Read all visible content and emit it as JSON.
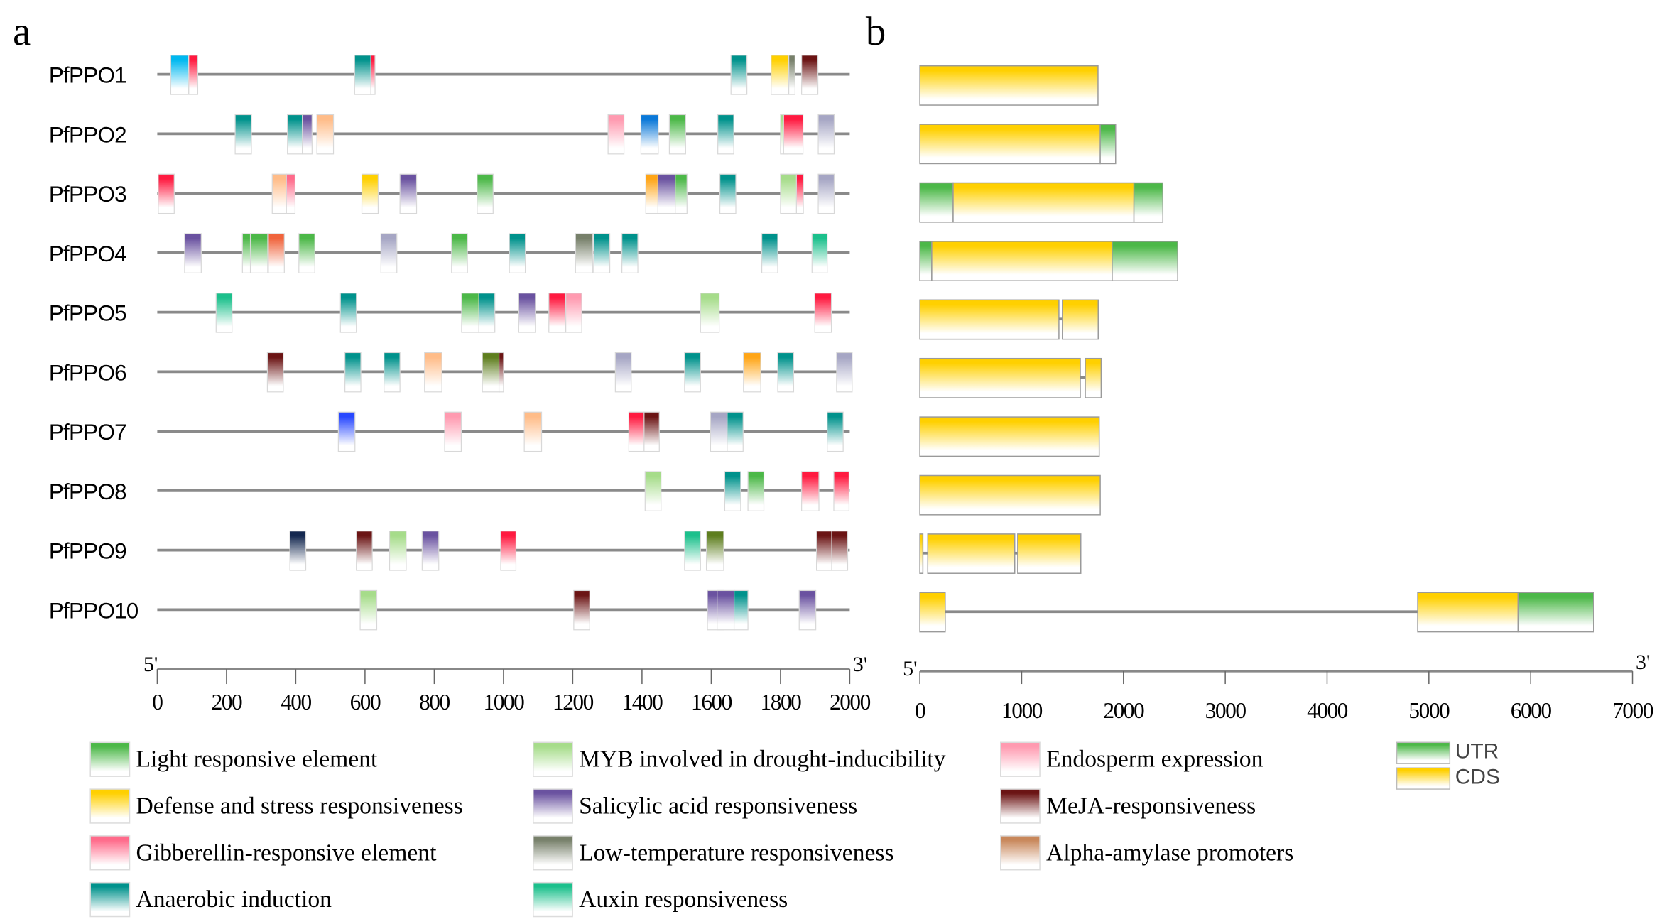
{
  "panel_labels": {
    "a": "a",
    "b": "b"
  },
  "palette": {
    "light": "#4cb848",
    "myb": "#a6dc8a",
    "endo": "#ff9ab0",
    "defense": "#ffd000",
    "sa": "#6a52a0",
    "meja": "#6b1414",
    "ga": "#ff6a8a",
    "lowtemp": "#77806a",
    "amylase": "#c8875a",
    "anaer": "#00928c",
    "auxin": "#1cc08c",
    "cyan": "#00b8f0",
    "red": "#ff1a40",
    "blue": "#0a78d8",
    "peach": "#ffbc88",
    "lavender": "#a6a6c4",
    "orange": "#ffa516",
    "orangered": "#f0643c",
    "olive": "#5e7e1e",
    "royalblue": "#2848ff",
    "navy": "#142850",
    "utr": "#4cb848",
    "cds": "#ffd000"
  },
  "chart_data": [
    {
      "type": "diagram",
      "title": "a",
      "xlabel_left": "5'",
      "xlabel_right": "3'",
      "xlim": [
        0,
        2000
      ],
      "ticks": [
        "0",
        "200",
        "400",
        "600",
        "800",
        "1000",
        "1200",
        "1400",
        "1600",
        "1800",
        "2000"
      ],
      "genes": [
        {
          "name": "PfPPO1",
          "elements": [
            {
              "pos": 39,
              "len": 50,
              "c": "cyan"
            },
            {
              "pos": 91,
              "len": 26,
              "c": "red"
            },
            {
              "pos": 570,
              "len": 47,
              "c": "anaer"
            },
            {
              "pos": 617,
              "len": 12,
              "c": "red"
            },
            {
              "pos": 1657,
              "len": 46,
              "c": "anaer"
            },
            {
              "pos": 1773,
              "len": 50,
              "c": "defense"
            },
            {
              "pos": 1824,
              "len": 18,
              "c": "lowtemp"
            },
            {
              "pos": 1861,
              "len": 47,
              "c": "meja"
            }
          ]
        },
        {
          "name": "PfPPO2",
          "elements": [
            {
              "pos": 225,
              "len": 47,
              "c": "anaer"
            },
            {
              "pos": 376,
              "len": 45,
              "c": "anaer"
            },
            {
              "pos": 419,
              "len": 28,
              "c": "sa"
            },
            {
              "pos": 461,
              "len": 48,
              "c": "peach"
            },
            {
              "pos": 1302,
              "len": 46,
              "c": "endo"
            },
            {
              "pos": 1397,
              "len": 50,
              "c": "blue"
            },
            {
              "pos": 1479,
              "len": 47,
              "c": "light"
            },
            {
              "pos": 1619,
              "len": 46,
              "c": "anaer"
            },
            {
              "pos": 1800,
              "len": 20,
              "c": "myb"
            },
            {
              "pos": 1809,
              "len": 56,
              "c": "red"
            },
            {
              "pos": 1909,
              "len": 46,
              "c": "lavender"
            }
          ]
        },
        {
          "name": "PfPPO3",
          "elements": [
            {
              "pos": 3,
              "len": 46,
              "c": "red"
            },
            {
              "pos": 332,
              "len": 42,
              "c": "peach"
            },
            {
              "pos": 373,
              "len": 25,
              "c": "ga"
            },
            {
              "pos": 591,
              "len": 47,
              "c": "defense"
            },
            {
              "pos": 701,
              "len": 48,
              "c": "sa"
            },
            {
              "pos": 924,
              "len": 46,
              "c": "light"
            },
            {
              "pos": 1411,
              "len": 36,
              "c": "orange"
            },
            {
              "pos": 1446,
              "len": 50,
              "c": "sa"
            },
            {
              "pos": 1496,
              "len": 34,
              "c": "light"
            },
            {
              "pos": 1625,
              "len": 46,
              "c": "anaer"
            },
            {
              "pos": 1800,
              "len": 48,
              "c": "myb"
            },
            {
              "pos": 1846,
              "len": 20,
              "c": "red"
            },
            {
              "pos": 1909,
              "len": 46,
              "c": "lavender"
            }
          ]
        },
        {
          "name": "PfPPO4",
          "elements": [
            {
              "pos": 79,
              "len": 48,
              "c": "sa"
            },
            {
              "pos": 246,
              "len": 48,
              "c": "light"
            },
            {
              "pos": 269,
              "len": 50,
              "c": "light"
            },
            {
              "pos": 321,
              "len": 46,
              "c": "orangered"
            },
            {
              "pos": 409,
              "len": 46,
              "c": "light"
            },
            {
              "pos": 646,
              "len": 46,
              "c": "lavender"
            },
            {
              "pos": 850,
              "len": 46,
              "c": "light"
            },
            {
              "pos": 1017,
              "len": 46,
              "c": "anaer"
            },
            {
              "pos": 1208,
              "len": 50,
              "c": "lowtemp"
            },
            {
              "pos": 1261,
              "len": 46,
              "c": "anaer"
            },
            {
              "pos": 1342,
              "len": 46,
              "c": "anaer"
            },
            {
              "pos": 1746,
              "len": 46,
              "c": "anaer"
            },
            {
              "pos": 1891,
              "len": 44,
              "c": "auxin"
            }
          ]
        },
        {
          "name": "PfPPO5",
          "elements": [
            {
              "pos": 170,
              "len": 46,
              "c": "auxin"
            },
            {
              "pos": 529,
              "len": 46,
              "c": "anaer"
            },
            {
              "pos": 879,
              "len": 50,
              "c": "light"
            },
            {
              "pos": 929,
              "len": 46,
              "c": "anaer"
            },
            {
              "pos": 1044,
              "len": 48,
              "c": "sa"
            },
            {
              "pos": 1131,
              "len": 48,
              "c": "red"
            },
            {
              "pos": 1180,
              "len": 46,
              "c": "endo"
            },
            {
              "pos": 1569,
              "len": 54,
              "c": "myb"
            },
            {
              "pos": 1899,
              "len": 48,
              "c": "red"
            }
          ]
        },
        {
          "name": "PfPPO6",
          "elements": [
            {
              "pos": 318,
              "len": 46,
              "c": "meja"
            },
            {
              "pos": 542,
              "len": 46,
              "c": "anaer"
            },
            {
              "pos": 655,
              "len": 46,
              "c": "anaer"
            },
            {
              "pos": 772,
              "len": 50,
              "c": "peach"
            },
            {
              "pos": 939,
              "len": 50,
              "c": "olive"
            },
            {
              "pos": 987,
              "len": 13,
              "c": "meja"
            },
            {
              "pos": 1323,
              "len": 46,
              "c": "lavender"
            },
            {
              "pos": 1523,
              "len": 46,
              "c": "anaer"
            },
            {
              "pos": 1693,
              "len": 50,
              "c": "orange"
            },
            {
              "pos": 1792,
              "len": 46,
              "c": "anaer"
            },
            {
              "pos": 1962,
              "len": 45,
              "c": "lavender"
            }
          ]
        },
        {
          "name": "PfPPO7",
          "elements": [
            {
              "pos": 523,
              "len": 48,
              "c": "royalblue"
            },
            {
              "pos": 830,
              "len": 48,
              "c": "endo"
            },
            {
              "pos": 1060,
              "len": 50,
              "c": "peach"
            },
            {
              "pos": 1362,
              "len": 46,
              "c": "red"
            },
            {
              "pos": 1406,
              "len": 44,
              "c": "meja"
            },
            {
              "pos": 1598,
              "len": 48,
              "c": "lavender"
            },
            {
              "pos": 1646,
              "len": 46,
              "c": "anaer"
            },
            {
              "pos": 1935,
              "len": 46,
              "c": "anaer"
            }
          ]
        },
        {
          "name": "PfPPO8",
          "elements": [
            {
              "pos": 1409,
              "len": 46,
              "c": "myb"
            },
            {
              "pos": 1639,
              "len": 46,
              "c": "anaer"
            },
            {
              "pos": 1706,
              "len": 46,
              "c": "light"
            },
            {
              "pos": 1861,
              "len": 50,
              "c": "red"
            },
            {
              "pos": 1954,
              "len": 44,
              "c": "red"
            }
          ]
        },
        {
          "name": "PfPPO9",
          "elements": [
            {
              "pos": 383,
              "len": 46,
              "c": "navy"
            },
            {
              "pos": 575,
              "len": 46,
              "c": "meja"
            },
            {
              "pos": 671,
              "len": 48,
              "c": "myb"
            },
            {
              "pos": 765,
              "len": 48,
              "c": "sa"
            },
            {
              "pos": 992,
              "len": 44,
              "c": "red"
            },
            {
              "pos": 1523,
              "len": 46,
              "c": "auxin"
            },
            {
              "pos": 1586,
              "len": 50,
              "c": "olive"
            },
            {
              "pos": 1904,
              "len": 44,
              "c": "meja"
            },
            {
              "pos": 1948,
              "len": 46,
              "c": "meja"
            }
          ]
        },
        {
          "name": "PfPPO10",
          "elements": [
            {
              "pos": 586,
              "len": 48,
              "c": "myb"
            },
            {
              "pos": 1203,
              "len": 46,
              "c": "meja"
            },
            {
              "pos": 1589,
              "len": 46,
              "c": "sa"
            },
            {
              "pos": 1617,
              "len": 50,
              "c": "sa"
            },
            {
              "pos": 1666,
              "len": 40,
              "c": "anaer"
            },
            {
              "pos": 1854,
              "len": 48,
              "c": "sa"
            }
          ]
        }
      ]
    },
    {
      "type": "diagram",
      "title": "b",
      "xlabel_left": "5'",
      "xlabel_right": "3'",
      "xlim": [
        0,
        7000
      ],
      "ticks": [
        "0",
        "1000",
        "2000",
        "3000",
        "4000",
        "5000",
        "6000",
        "7000"
      ],
      "genes": [
        {
          "name": "PfPPO1",
          "features": [
            {
              "type": "cds",
              "start": 0,
              "end": 1750
            }
          ]
        },
        {
          "name": "PfPPO2",
          "features": [
            {
              "type": "cds",
              "start": 0,
              "end": 1772
            },
            {
              "type": "utr",
              "start": 1772,
              "end": 1923
            }
          ]
        },
        {
          "name": "PfPPO3",
          "features": [
            {
              "type": "utr",
              "start": 0,
              "end": 327
            },
            {
              "type": "cds",
              "start": 327,
              "end": 2103
            },
            {
              "type": "utr",
              "start": 2103,
              "end": 2387
            }
          ]
        },
        {
          "name": "PfPPO4",
          "features": [
            {
              "type": "utr",
              "start": 0,
              "end": 117
            },
            {
              "type": "cds",
              "start": 117,
              "end": 1889
            },
            {
              "type": "utr",
              "start": 1889,
              "end": 2533
            }
          ]
        },
        {
          "name": "PfPPO5",
          "features": [
            {
              "type": "cds",
              "start": 0,
              "end": 1366
            },
            {
              "type": "intron",
              "start": 1366,
              "end": 1400
            },
            {
              "type": "cds",
              "start": 1400,
              "end": 1752
            }
          ]
        },
        {
          "name": "PfPPO6",
          "features": [
            {
              "type": "cds",
              "start": 0,
              "end": 1576
            },
            {
              "type": "intron",
              "start": 1576,
              "end": 1625
            },
            {
              "type": "cds",
              "start": 1625,
              "end": 1781
            }
          ]
        },
        {
          "name": "PfPPO7",
          "features": [
            {
              "type": "cds",
              "start": 0,
              "end": 1762
            }
          ]
        },
        {
          "name": "PfPPO8",
          "features": [
            {
              "type": "cds",
              "start": 0,
              "end": 1772
            }
          ]
        },
        {
          "name": "PfPPO9",
          "features": [
            {
              "type": "cds",
              "start": 0,
              "end": 30
            },
            {
              "type": "intron",
              "start": 30,
              "end": 78
            },
            {
              "type": "cds",
              "start": 78,
              "end": 932
            },
            {
              "type": "intron",
              "start": 932,
              "end": 961
            },
            {
              "type": "cds",
              "start": 961,
              "end": 1581
            }
          ]
        },
        {
          "name": "PfPPO10",
          "features": [
            {
              "type": "cds",
              "start": 0,
              "end": 249
            },
            {
              "type": "intron",
              "start": 249,
              "end": 4890
            },
            {
              "type": "cds",
              "start": 4890,
              "end": 5876
            },
            {
              "type": "utr",
              "start": 5876,
              "end": 6618
            }
          ]
        }
      ]
    }
  ],
  "legend": [
    {
      "label": "Light responsive element",
      "c": "light"
    },
    {
      "label": "Defense and stress responsiveness",
      "c": "defense"
    },
    {
      "label": "Gibberellin-responsive element",
      "c": "ga"
    },
    {
      "label": "Anaerobic induction",
      "c": "anaer"
    },
    {
      "label": "MYB involved in drought-inducibility",
      "c": "myb"
    },
    {
      "label": "Salicylic acid responsiveness",
      "c": "sa"
    },
    {
      "label": "Low-temperature responsiveness",
      "c": "lowtemp"
    },
    {
      "label": "Auxin responsiveness",
      "c": "auxin"
    },
    {
      "label": "Endosperm expression",
      "c": "endo"
    },
    {
      "label": "MeJA-responsiveness",
      "c": "meja"
    },
    {
      "label": "Alpha-amylase promoters",
      "c": "amylase"
    }
  ],
  "legend_b": [
    {
      "label": "UTR",
      "c": "utr"
    },
    {
      "label": "CDS",
      "c": "cds"
    }
  ]
}
